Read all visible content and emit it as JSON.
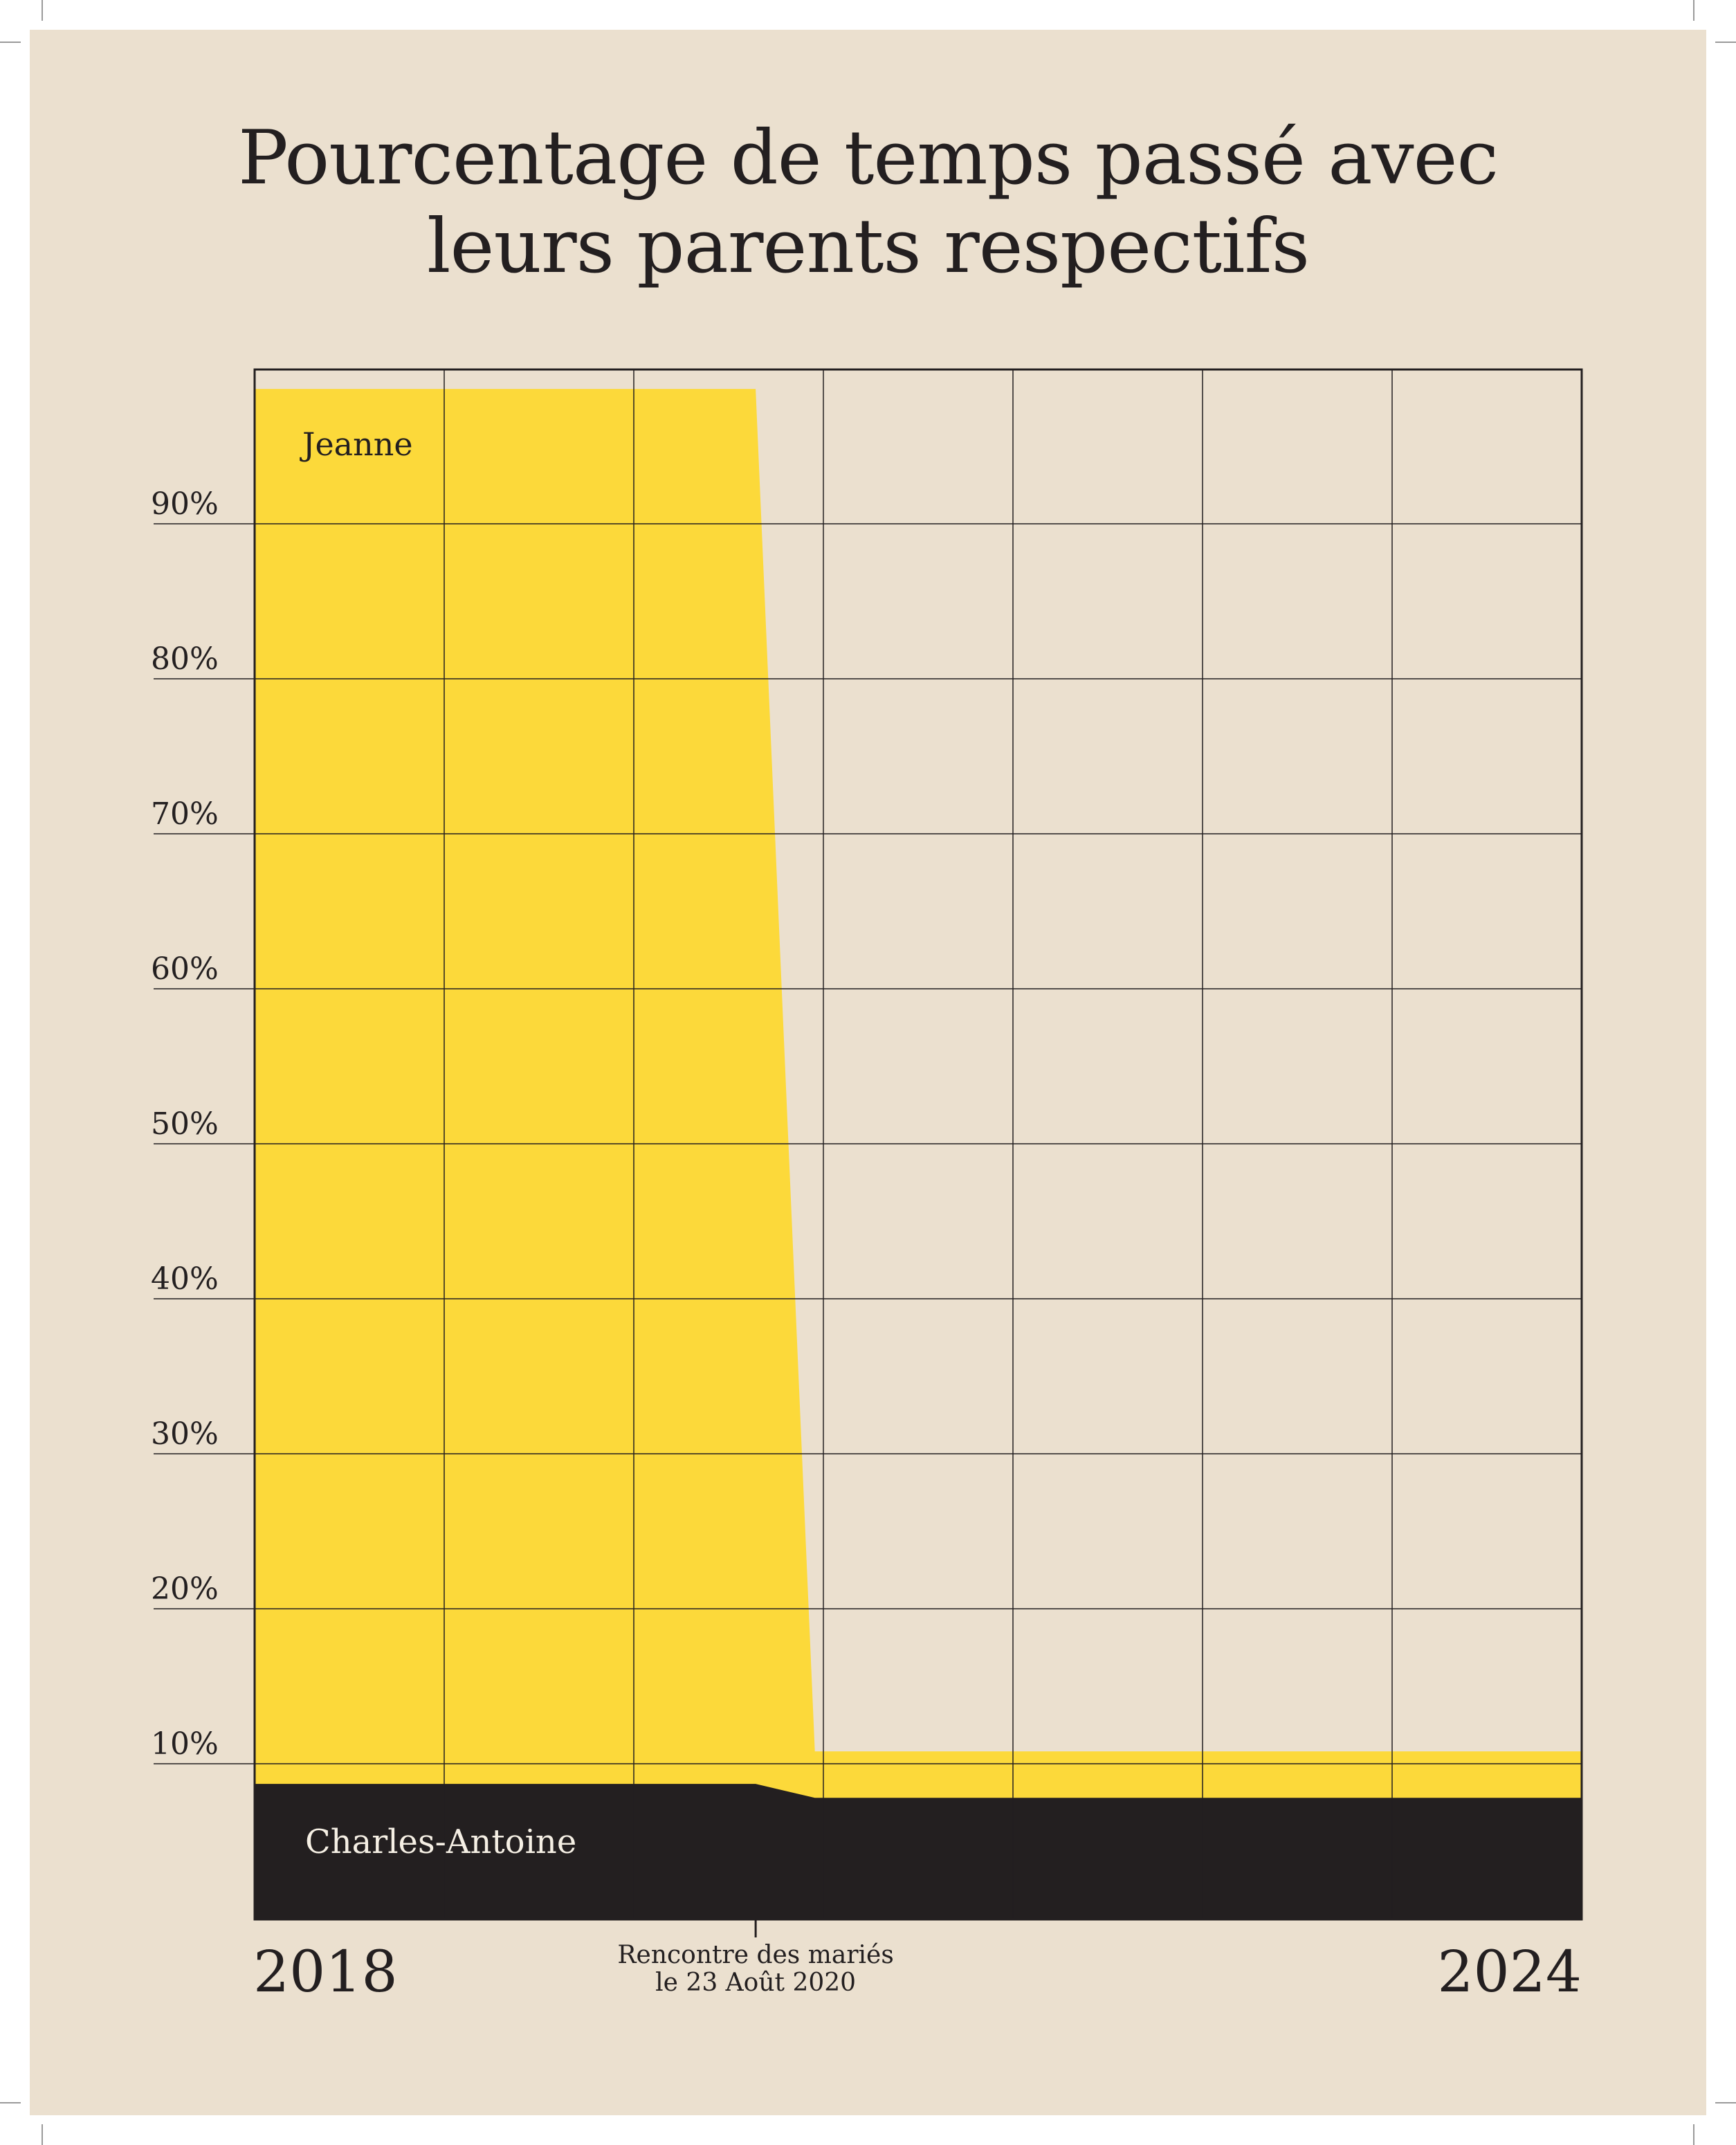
{
  "chart_data": {
    "type": "area",
    "title": [
      "Pourcentage de temps passé avec",
      "leurs parents respectifs"
    ],
    "xlabel": "",
    "ylabel": "",
    "x_start": "2018",
    "x_end": "2024",
    "x_tick_labels": [
      "2018",
      "2024"
    ],
    "annotation": {
      "x": "2020-08-23",
      "lines": [
        "Rencontre des mariés",
        "le 23 Août 2020"
      ]
    },
    "ylim": [
      0,
      100
    ],
    "yticks": [
      10,
      20,
      30,
      40,
      50,
      60,
      70,
      80,
      90
    ],
    "ytick_labels": [
      "10%",
      "20%",
      "30%",
      "40%",
      "50%",
      "60%",
      "70%",
      "80%",
      "90%"
    ],
    "grid": true,
    "series": [
      {
        "name": "Jeanne",
        "color": "#fcd93a",
        "points": [
          {
            "x": "2018-01-01",
            "y": 98.7
          },
          {
            "x": "2020-08-23",
            "y": 98.7
          },
          {
            "x": "2020-12-15",
            "y": 10.8
          },
          {
            "x": "2024-12-31",
            "y": 10.8
          }
        ]
      },
      {
        "name": "Charles-Antoine",
        "color": "#231f20",
        "points": [
          {
            "x": "2018-01-01",
            "y": 8.7
          },
          {
            "x": "2020-08-23",
            "y": 8.7
          },
          {
            "x": "2020-12-15",
            "y": 7.8
          },
          {
            "x": "2024-12-31",
            "y": 7.8
          }
        ]
      }
    ]
  }
}
